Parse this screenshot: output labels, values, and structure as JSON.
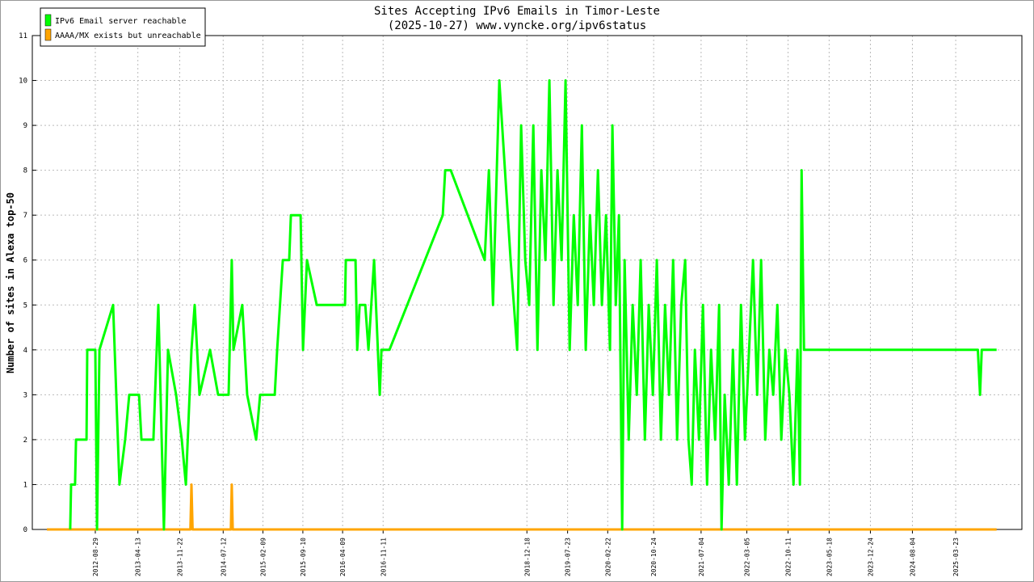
{
  "chart_data": {
    "type": "line",
    "title": "Sites Accepting IPv6 Emails in Timor-Leste",
    "subtitle": "(2025-10-27) www.vyncke.org/ipv6status",
    "y_label": "Number of sites in Alexa top-50",
    "xlim": [
      "2011-09-28",
      "2026-03-11"
    ],
    "xticks": [
      "2012-08-29",
      "2013-04-13",
      "2013-11-22",
      "2014-07-12",
      "2015-02-09",
      "2015-09-10",
      "2016-04-09",
      "2016-11-11",
      "2018-12-18",
      "2019-07-23",
      "2020-02-22",
      "2020-10-24",
      "2021-07-04",
      "2022-03-05",
      "2022-10-11",
      "2023-05-18",
      "2023-12-24",
      "2024-08-04",
      "2025-03-23"
    ],
    "ylim": [
      0,
      11
    ],
    "yticks": [
      0,
      1,
      2,
      3,
      4,
      5,
      6,
      7,
      8,
      9,
      10,
      11
    ],
    "grid": true,
    "legend": "top-left",
    "series": [
      {
        "name": "IPv6 Email server reachable",
        "color": "#00ff00",
        "x": [
          "2012-04-17",
          "2012-04-22",
          "2012-05-13",
          "2012-05-18",
          "2012-07-13",
          "2012-07-17",
          "2012-08-29",
          "2012-09-07",
          "2012-09-20",
          "2012-12-02",
          "2013-01-05",
          "2013-02-04",
          "2013-02-26",
          "2013-04-19",
          "2013-05-02",
          "2013-07-05",
          "2013-07-31",
          "2013-08-30",
          "2013-09-21",
          "2013-11-03",
          "2013-12-03",
          "2013-12-25",
          "2014-01-24",
          "2014-02-10",
          "2014-03-08",
          "2014-05-03",
          "2014-06-15",
          "2014-08-10",
          "2014-08-27",
          "2014-09-05",
          "2014-10-22",
          "2014-11-17",
          "2015-01-04",
          "2015-01-25",
          "2015-04-13",
          "2015-04-26",
          "2015-05-26",
          "2015-06-29",
          "2015-07-08",
          "2015-08-29",
          "2015-09-11",
          "2015-10-02",
          "2015-11-23",
          "2016-04-22",
          "2016-04-26",
          "2016-06-17",
          "2016-06-26",
          "2016-07-09",
          "2016-08-08",
          "2016-08-25",
          "2016-09-24",
          "2016-10-24",
          "2016-11-02",
          "2016-12-15",
          "2017-09-25",
          "2017-10-08",
          "2017-11-07",
          "2018-05-07",
          "2018-05-29",
          "2018-06-20",
          "2018-07-24",
          "2018-09-22",
          "2018-10-27",
          "2018-11-17",
          "2018-12-09",
          "2018-12-30",
          "2019-01-21",
          "2019-02-12",
          "2019-03-05",
          "2019-03-27",
          "2019-04-17",
          "2019-05-09",
          "2019-05-30",
          "2019-06-21",
          "2019-07-12",
          "2019-08-03",
          "2019-08-25",
          "2019-09-15",
          "2019-10-07",
          "2019-10-28",
          "2019-11-19",
          "2019-12-10",
          "2020-01-01",
          "2020-01-22",
          "2020-02-13",
          "2020-03-05",
          "2020-03-18",
          "2020-04-05",
          "2020-04-22",
          "2020-05-09",
          "2020-05-22",
          "2020-06-13",
          "2020-07-04",
          "2020-07-26",
          "2020-08-16",
          "2020-09-07",
          "2020-09-28",
          "2020-10-20",
          "2020-11-10",
          "2020-12-02",
          "2020-12-24",
          "2021-01-14",
          "2021-02-05",
          "2021-02-26",
          "2021-03-20",
          "2021-04-10",
          "2021-04-28",
          "2021-05-15",
          "2021-06-01",
          "2021-06-23",
          "2021-07-14",
          "2021-08-05",
          "2021-08-26",
          "2021-09-17",
          "2021-10-08",
          "2021-10-21",
          "2021-11-07",
          "2021-11-29",
          "2021-12-21",
          "2022-01-11",
          "2022-02-02",
          "2022-02-23",
          "2022-03-17",
          "2022-04-07",
          "2022-04-29",
          "2022-05-20",
          "2022-06-11",
          "2022-07-03",
          "2022-07-24",
          "2022-08-15",
          "2022-09-05",
          "2022-09-27",
          "2022-10-18",
          "2022-11-09",
          "2022-11-30",
          "2022-12-13",
          "2022-12-22",
          "2023-01-04",
          "2025-07-19",
          "2025-07-31",
          "2025-08-09",
          "2025-10-27"
        ],
        "values": [
          0,
          1,
          1,
          2,
          2,
          4,
          4,
          0,
          4,
          5,
          1,
          2,
          3,
          3,
          2,
          2,
          5,
          0,
          4,
          3,
          2,
          1,
          4,
          5,
          3,
          4,
          3,
          3,
          6,
          4,
          5,
          3,
          2,
          3,
          3,
          4,
          6,
          6,
          7,
          7,
          4,
          6,
          5,
          5,
          6,
          6,
          4,
          5,
          5,
          4,
          6,
          3,
          4,
          4,
          7,
          8,
          8,
          6,
          8,
          5,
          10,
          6,
          4,
          9,
          6,
          5,
          9,
          4,
          8,
          6,
          10,
          5,
          8,
          6,
          10,
          4,
          7,
          5,
          9,
          4,
          7,
          5,
          8,
          5,
          7,
          4,
          9,
          5,
          7,
          0,
          6,
          2,
          5,
          3,
          6,
          2,
          5,
          3,
          6,
          2,
          5,
          3,
          6,
          2,
          5,
          6,
          2,
          1,
          4,
          2,
          5,
          1,
          4,
          2,
          5,
          0,
          3,
          1,
          4,
          1,
          5,
          2,
          4,
          6,
          3,
          6,
          2,
          4,
          3,
          5,
          2,
          4,
          3,
          1,
          4,
          1,
          8,
          4,
          4,
          3,
          4,
          4
        ]
      },
      {
        "name": "AAAA/MX exists but unreachable",
        "color": "#ffa500",
        "x": [
          "2011-12-15",
          "2014-01-18",
          "2014-01-24",
          "2014-01-30",
          "2014-08-22",
          "2014-08-27",
          "2014-09-01",
          "2025-10-27"
        ],
        "values": [
          0,
          0,
          1,
          0,
          0,
          1,
          0,
          0
        ]
      }
    ]
  }
}
